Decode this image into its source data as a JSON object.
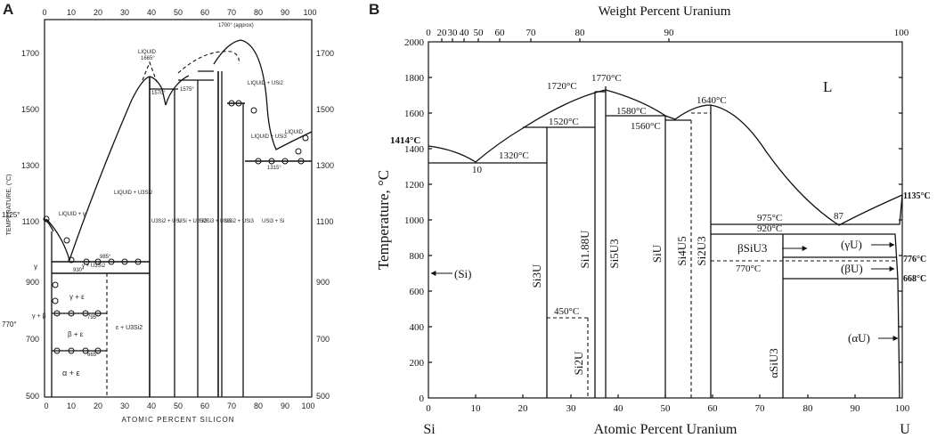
{
  "panel_a": {
    "letter": "A",
    "y_axis_title": "TEMPERATURE, (°C)",
    "x_axis_title": "ATOMIC PERCENT SILICON",
    "x_ticks": [
      "0",
      "10",
      "20",
      "30",
      "40",
      "50",
      "60",
      "70",
      "80",
      "90",
      "100"
    ],
    "y_ticks_left": [
      "1700",
      "1500",
      "1300",
      "1100",
      "900",
      "700",
      "500"
    ],
    "y_ticks_right": [
      "1700",
      "1500",
      "1300",
      "1100",
      "900",
      "700",
      "500"
    ],
    "special_temps": {
      "t1125": "1125°",
      "t770": "770°"
    },
    "annotations": {
      "liquid_top": "LIQUID",
      "t1665": "1665°",
      "t1700": "1700° (approx)",
      "t1570": "1570°",
      "t1575": "1575°",
      "t1315": "1315°",
      "t985": "985°",
      "t930": "930°",
      "t795": "795°",
      "t665": "665°",
      "liq_y": "LIQUID + γ",
      "liq_u3si2": "LIQUID + U3Si2",
      "liq_usi2": "LIQUID + USi2",
      "liq_usi3": "LIQUID + USi3",
      "liquid_right": "LIQUID",
      "gamma": "γ",
      "g_u3si2": "γ + U3Si2",
      "g_e": "γ + ε",
      "gb": "γ + β",
      "b_e": "β + ε",
      "a_e": "α + ε",
      "eps_u3si2": "ε + U3Si2",
      "u3si2_usi": "U3Si2 + USi",
      "usi_u2si3": "USi + U2Si3",
      "u2si3_usi2": "U2Si3 + USi2",
      "usi2_usi3": "USi2 + USi3",
      "usi3_si": "USi3 + Si"
    }
  },
  "panel_b": {
    "letter": "B",
    "top_axis_title": "Weight Percent Uranium",
    "top_ticks": [
      "0",
      "20",
      "30",
      "40",
      "50",
      "60",
      "70",
      "80",
      "90",
      "100"
    ],
    "y_axis_title": "Temperature, °C",
    "x_axis_title": "Atomic Percent Uranium",
    "x_ticks": [
      "0",
      "10",
      "20",
      "30",
      "40",
      "50",
      "60",
      "70",
      "80",
      "90",
      "100"
    ],
    "y_ticks": [
      "0",
      "200",
      "400",
      "600",
      "800",
      "1000",
      "1200",
      "1400",
      "1600",
      "1800",
      "2000"
    ],
    "end_left": "Si",
    "end_right": "U",
    "liquid": "L",
    "temps": {
      "t1414": "1414°C",
      "t1320": "1320°C",
      "t1520": "1520°C",
      "t1720": "1720°C",
      "t1770": "1770°C",
      "t1580": "1580°C",
      "t1560": "1560°C",
      "t1640": "1640°C",
      "t975": "975°C",
      "t920": "920°C",
      "t770": "770°C",
      "t450": "450°C",
      "t1135": "1135°C",
      "t776": "776°C",
      "t668": "668°C"
    },
    "points": {
      "e10": "10",
      "e87": "87"
    },
    "phases": {
      "si3u": "Si3U",
      "si188u": "Si1.88U",
      "si5u3": "Si5U3",
      "siu": "SiU",
      "si4u5": "Si4U5",
      "si2u3": "Si2U3",
      "si2u": "Si2U",
      "bsiu3": "βSiU3",
      "asiu3": "αSiU3",
      "si": "(Si)",
      "gu": "(γU)",
      "bu": "(βU)",
      "au": "(αU)"
    }
  }
}
